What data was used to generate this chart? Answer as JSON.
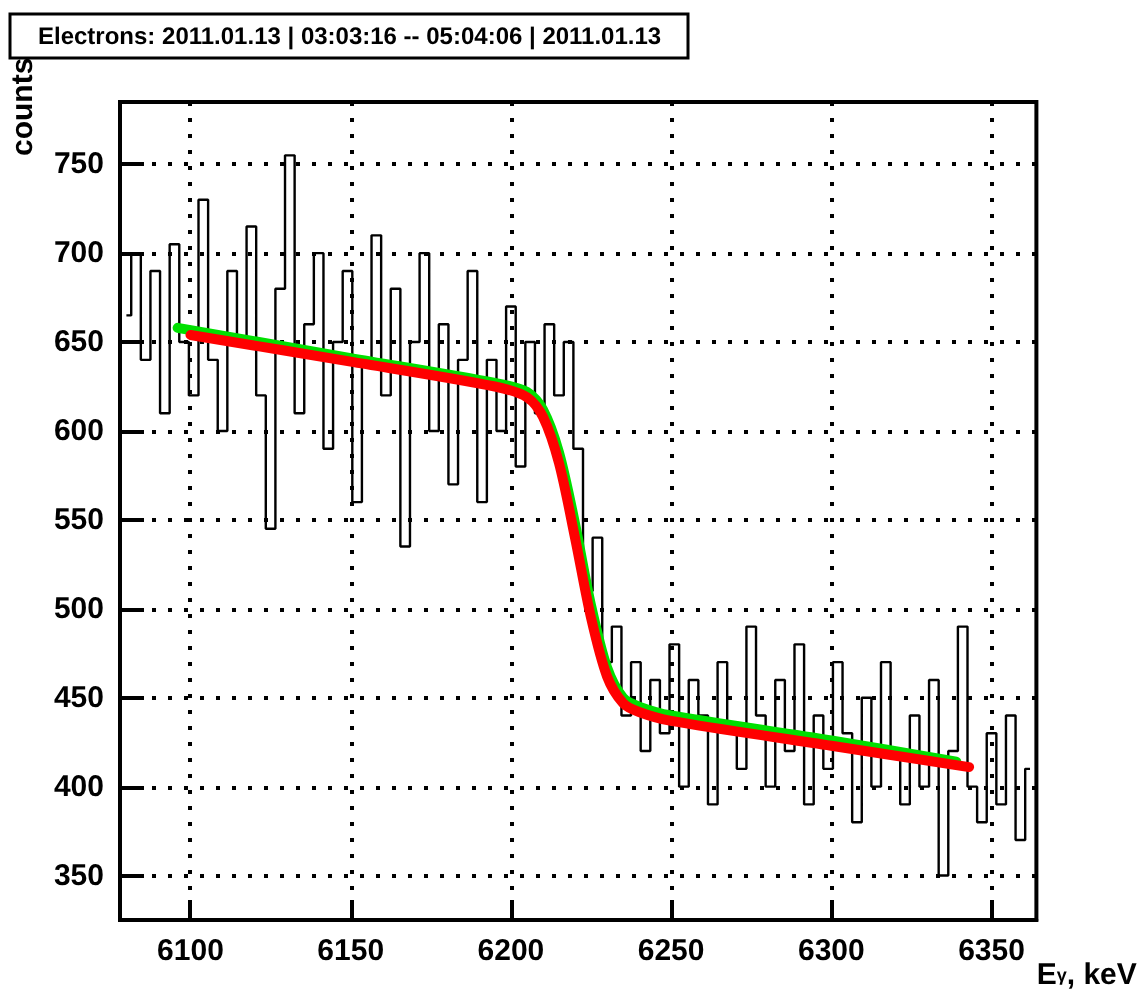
{
  "chart_data": {
    "type": "step",
    "title": "Electrons: 2011.01.13 | 03:03:16 -- 05:04:06 | 2011.01.13",
    "xlabel": "E$_{γ}$, keV",
    "ylabel": "counts",
    "xlim": [
      6078,
      6364
    ],
    "ylim": [
      325,
      785
    ],
    "xticks": [
      6100,
      6150,
      6200,
      6250,
      6300,
      6350
    ],
    "yticks": [
      350,
      400,
      450,
      500,
      550,
      600,
      650,
      700,
      750
    ],
    "grid": true,
    "marker": "none",
    "x": [
      6080,
      6083,
      6086,
      6089,
      6092,
      6095,
      6098,
      6101,
      6104,
      6107,
      6110,
      6113,
      6116,
      6119,
      6122,
      6125,
      6128,
      6131,
      6134,
      6137,
      6140,
      6143,
      6146,
      6149,
      6152,
      6155,
      6158,
      6161,
      6164,
      6167,
      6170,
      6173,
      6176,
      6179,
      6182,
      6185,
      6188,
      6191,
      6194,
      6197,
      6200,
      6203,
      6206,
      6209,
      6212,
      6215,
      6218,
      6221,
      6224,
      6227,
      6230,
      6233,
      6236,
      6239,
      6242,
      6245,
      6248,
      6251,
      6254,
      6257,
      6260,
      6263,
      6266,
      6269,
      6272,
      6275,
      6278,
      6281,
      6284,
      6287,
      6290,
      6293,
      6296,
      6299,
      6302,
      6305,
      6308,
      6311,
      6314,
      6317,
      6320,
      6323,
      6326,
      6329,
      6332,
      6335,
      6338,
      6341,
      6344,
      6347,
      6350,
      6353,
      6356,
      6359,
      6362
    ],
    "series": [
      {
        "color": "#000000",
        "values": [
          665,
          700,
          640,
          690,
          610,
          705,
          650,
          620,
          730,
          640,
          600,
          690,
          650,
          715,
          620,
          545,
          680,
          755,
          610,
          660,
          700,
          590,
          650,
          690,
          560,
          640,
          710,
          620,
          680,
          535,
          650,
          700,
          600,
          660,
          570,
          640,
          690,
          560,
          640,
          600,
          670,
          580,
          650,
          610,
          660,
          620,
          650,
          590,
          510,
          540,
          470,
          490,
          440,
          470,
          420,
          460,
          430,
          480,
          400,
          460,
          440,
          390,
          470,
          430,
          410,
          490,
          440,
          400,
          460,
          420,
          480,
          390,
          440,
          410,
          470,
          430,
          380,
          450,
          400,
          470,
          420,
          390,
          440,
          400,
          460,
          350,
          420,
          490,
          400,
          380,
          430,
          390,
          440,
          370,
          410
        ]
      },
      {
        "type": "line",
        "color": "#00e000",
        "x": [
          6096,
          6150,
          6195,
          6205,
          6210,
          6215,
          6220,
          6225,
          6230,
          6235,
          6240,
          6250,
          6300,
          6339
        ],
        "values": [
          658,
          641,
          627,
          622,
          612,
          588,
          548,
          502,
          467,
          450,
          445,
          440,
          426,
          414
        ]
      },
      {
        "type": "line",
        "color": "#ff0000",
        "x": [
          6100,
          6150,
          6195,
          6205,
          6210,
          6215,
          6220,
          6225,
          6230,
          6235,
          6240,
          6250,
          6300,
          6343
        ],
        "values": [
          654,
          639,
          625,
          619,
          608,
          582,
          540,
          495,
          462,
          447,
          442,
          437,
          423,
          411
        ]
      }
    ]
  }
}
